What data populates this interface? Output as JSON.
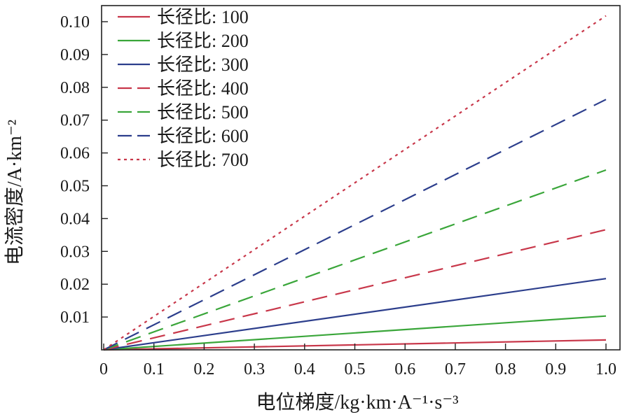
{
  "chart_data": {
    "type": "line",
    "title": "",
    "xlabel": "电位梯度/kg·km·A⁻¹·s⁻³",
    "ylabel": "电流密度/A·km⁻²",
    "xlim": [
      0,
      1.0
    ],
    "ylim": [
      0,
      0.105
    ],
    "x_ticks": [
      "0",
      "0.1",
      "0.2",
      "0.3",
      "0.4",
      "0.5",
      "0.6",
      "0.7",
      "0.8",
      "0.9",
      "1.0"
    ],
    "y_ticks": [
      "0.01",
      "0.02",
      "0.03",
      "0.04",
      "0.05",
      "0.06",
      "0.07",
      "0.08",
      "0.09",
      "0.10"
    ],
    "grid": false,
    "legend_position": "top-left",
    "series": [
      {
        "name": "长径比: 100",
        "color": "#c8374a",
        "style": "solid",
        "x": [
          0,
          1.0
        ],
        "y": [
          0,
          0.003
        ]
      },
      {
        "name": "长径比: 200",
        "color": "#3aa63a",
        "style": "solid",
        "x": [
          0,
          1.0
        ],
        "y": [
          0,
          0.0103
        ]
      },
      {
        "name": "长径比: 300",
        "color": "#2c3e8c",
        "style": "solid",
        "x": [
          0,
          1.0
        ],
        "y": [
          0,
          0.0217
        ]
      },
      {
        "name": "长径比: 400",
        "color": "#c8374a",
        "style": "dashed",
        "x": [
          0,
          1.0
        ],
        "y": [
          0,
          0.0366
        ]
      },
      {
        "name": "长径比: 500",
        "color": "#3aa63a",
        "style": "dashed",
        "x": [
          0,
          1.0
        ],
        "y": [
          0,
          0.0548
        ]
      },
      {
        "name": "长径比: 600",
        "color": "#2c3e8c",
        "style": "dashed",
        "x": [
          0,
          1.0
        ],
        "y": [
          0,
          0.0763
        ]
      },
      {
        "name": "长径比: 700",
        "color": "#c8374a",
        "style": "dotted",
        "x": [
          0,
          1.0
        ],
        "y": [
          0,
          0.1018
        ]
      }
    ]
  }
}
